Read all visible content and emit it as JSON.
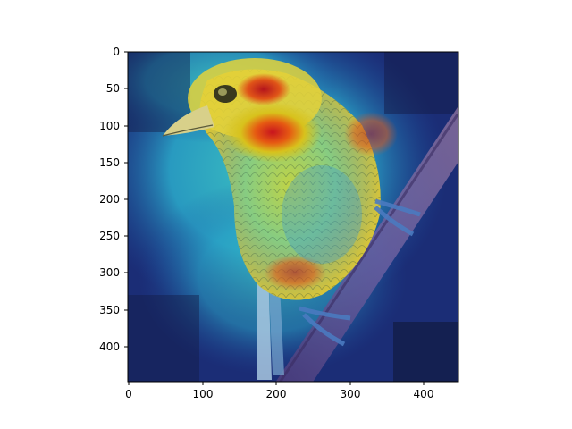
{
  "figure": {
    "image_subject": "bird-perched-on-branch-heatmap-overlay",
    "colormap": "jet",
    "x_axis": {
      "ticks": [
        "0",
        "100",
        "200",
        "300",
        "400"
      ],
      "range": [
        0,
        448
      ]
    },
    "y_axis": {
      "ticks": [
        "0",
        "50",
        "100",
        "150",
        "200",
        "250",
        "300",
        "350",
        "400"
      ],
      "range": [
        0,
        448
      ]
    }
  }
}
